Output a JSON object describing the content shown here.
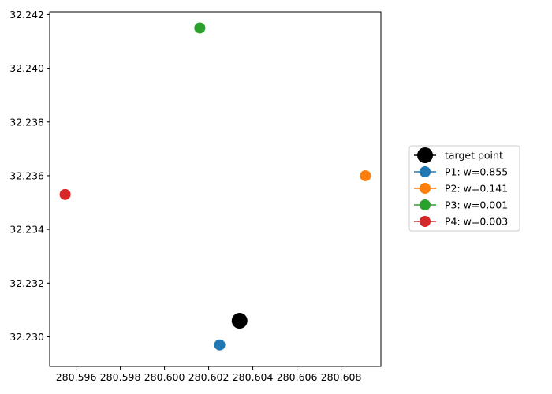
{
  "chart_data": {
    "type": "scatter",
    "title": "",
    "xlabel": "",
    "ylabel": "",
    "xlim": [
      280.5948,
      280.6098
    ],
    "ylim": [
      32.2289,
      32.2421
    ],
    "xticks": [
      280.596,
      280.598,
      280.6,
      280.602,
      280.604,
      280.606,
      280.608
    ],
    "xtick_labels": [
      "280.596",
      "280.598",
      "280.600",
      "280.602",
      "280.604",
      "280.606",
      "280.608"
    ],
    "yticks": [
      32.23,
      32.232,
      32.234,
      32.236,
      32.238,
      32.24,
      32.242
    ],
    "ytick_labels": [
      "32.230",
      "32.232",
      "32.234",
      "32.236",
      "32.238",
      "32.240",
      "32.242"
    ],
    "grid": false,
    "legend_position": "outside-right",
    "series": [
      {
        "name": "target point",
        "color": "#000000",
        "marker_size": "large",
        "points": [
          {
            "x": 280.6034,
            "y": 32.2306
          }
        ]
      },
      {
        "name": "P1: w=0.855",
        "color": "#1f77b4",
        "marker_size": "normal",
        "points": [
          {
            "x": 280.6025,
            "y": 32.2297
          }
        ]
      },
      {
        "name": "P2: w=0.141",
        "color": "#ff7f0e",
        "marker_size": "normal",
        "points": [
          {
            "x": 280.6091,
            "y": 32.236
          }
        ]
      },
      {
        "name": "P3: w=0.001",
        "color": "#2ca02c",
        "marker_size": "normal",
        "points": [
          {
            "x": 280.6016,
            "y": 32.2415
          }
        ]
      },
      {
        "name": "P4: w=0.003",
        "color": "#d62728",
        "marker_size": "normal",
        "points": [
          {
            "x": 280.5955,
            "y": 32.2353
          }
        ]
      }
    ]
  }
}
